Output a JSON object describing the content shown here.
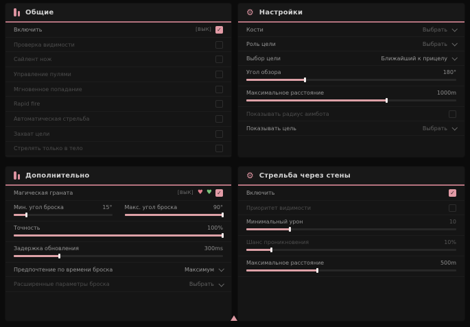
{
  "icons": {
    "gear": "⚙",
    "check": "✓",
    "heart": "♥"
  },
  "colors": {
    "accent_pink": "#dda1a7",
    "header_line": "#b5737f",
    "panel_bg": "#151515"
  },
  "general": {
    "title": "Общие",
    "rows": [
      {
        "label": "Включить",
        "tag": "[ВЫК]",
        "checked": true
      },
      {
        "label": "Проверка видимости",
        "checked": false
      },
      {
        "label": "Сайлент нож",
        "checked": false
      },
      {
        "label": "Управление пулями",
        "checked": false
      },
      {
        "label": "Мгновенное попадание",
        "checked": false
      },
      {
        "label": "Rapid fire",
        "checked": false
      },
      {
        "label": "Автоматическая стрельба",
        "checked": false
      },
      {
        "label": "Захват цели",
        "checked": false
      },
      {
        "label": "Стрелять только в тело",
        "checked": false
      }
    ]
  },
  "settings": {
    "title": "Настройки",
    "bones": {
      "label": "Кости",
      "value": "Выбрать"
    },
    "target_role": {
      "label": "Роль цели",
      "value": "Выбрать"
    },
    "target_select": {
      "label": "Выбор цели",
      "value": "Ближайший к прицелу"
    },
    "fov": {
      "label": "Угол обзора",
      "value": "180°",
      "fill": 28
    },
    "max_distance": {
      "label": "Максимальное расстояние",
      "value": "1000m",
      "fill": 67
    },
    "show_radius": {
      "label": "Показывать радиус аимбота",
      "checked": false
    },
    "show_target": {
      "label": "Показывать цель",
      "value": "Выбрать"
    }
  },
  "additional": {
    "title": "Дополнительно",
    "magic_grenade": {
      "label": "Магическая граната",
      "tag": "[ВЫК]",
      "checked": true
    },
    "min_angle": {
      "label": "Мин. угол броска",
      "value": "15°",
      "fill": 13
    },
    "max_angle": {
      "label": "Макс. угол броска",
      "value": "90°",
      "fill": 100
    },
    "accuracy": {
      "label": "Точность",
      "value": "100%",
      "fill": 100
    },
    "update_delay": {
      "label": "Задержка обновления",
      "value": "300ms",
      "fill": 22
    },
    "throw_time": {
      "label": "Предпочтение по времени броска",
      "value": "Максимум"
    },
    "advanced_throw": {
      "label": "Расширенные параметры броска",
      "value": "Выбрать"
    }
  },
  "wallbang": {
    "title": "Стрельба через стены",
    "enable": {
      "label": "Включить",
      "checked": true
    },
    "visibility_priority": {
      "label": "Приоритет видимости",
      "checked": false
    },
    "min_damage": {
      "label": "Минимальный урон",
      "value": "10",
      "fill": 21
    },
    "penetration_chance": {
      "label": "Шанс проникновения",
      "value": "10%",
      "fill": 12
    },
    "max_distance": {
      "label": "Максимальное расстояние",
      "value": "500m",
      "fill": 34
    }
  }
}
